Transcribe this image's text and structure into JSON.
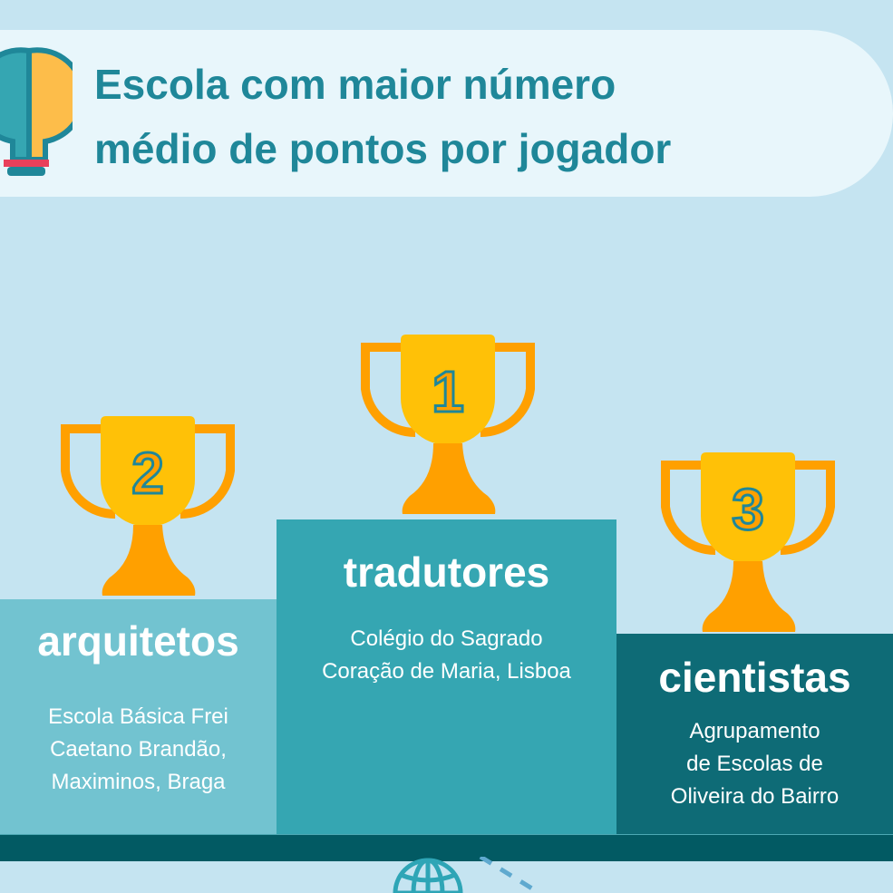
{
  "header": {
    "title_line1": "Escola com maior número",
    "title_line2": "médio de pontos por jogador"
  },
  "podium": [
    {
      "rank": "1",
      "team": "tradutores",
      "school_lines": [
        "Colégio do Sagrado",
        "Coração de Maria, Lisboa"
      ]
    },
    {
      "rank": "2",
      "team": "arquitetos",
      "school_lines": [
        "Escola Básica Frei",
        "Caetano Brandão,",
        "Maximinos, Braga"
      ]
    },
    {
      "rank": "3",
      "team": "cientistas",
      "school_lines": [
        "Agrupamento",
        "de Escolas de",
        "Oliveira do Bairro"
      ]
    }
  ],
  "colors": {
    "background": "#c5e4f1",
    "title": "#1f8799",
    "first": "#35a6b2",
    "second": "#72c3d0",
    "third": "#0e6b76",
    "trophy": "#ffc107",
    "trophy_dark": "#ffa000"
  },
  "icons": [
    "lightbulb-icon",
    "trophy-icon",
    "globe-icon"
  ]
}
